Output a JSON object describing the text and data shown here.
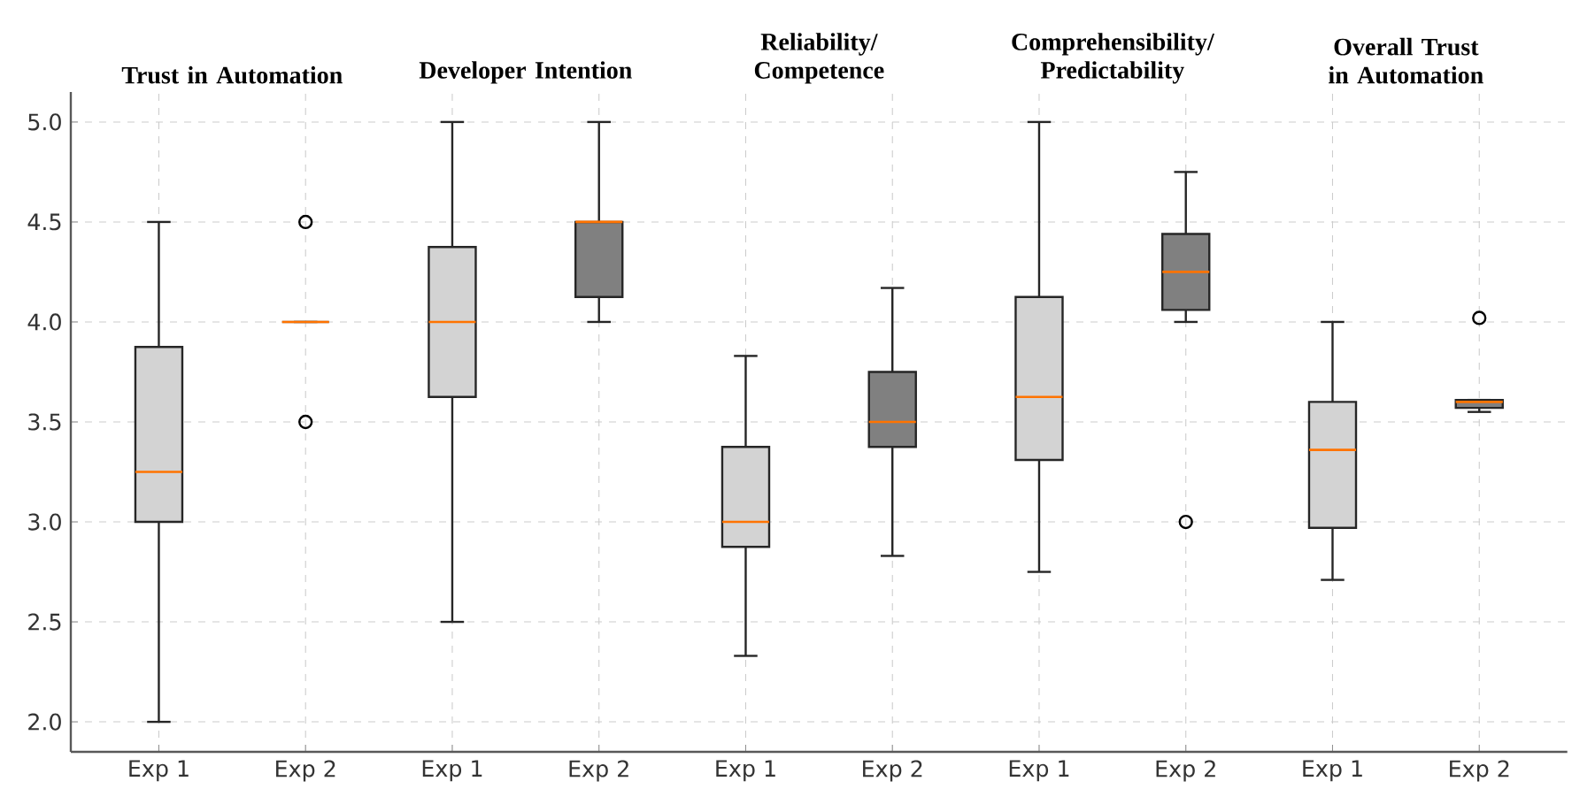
{
  "chart_data": {
    "type": "box",
    "categories": [
      "Exp 1",
      "Exp 2",
      "Exp 1",
      "Exp 2",
      "Exp 1",
      "Exp 2",
      "Exp 1",
      "Exp 2",
      "Exp 1",
      "Exp 2"
    ],
    "boxes": [
      {
        "low": 2.0,
        "q1": 3.0,
        "median": 3.25,
        "q3": 3.875,
        "high": 4.5
      },
      {
        "low": 4.0,
        "q1": 4.0,
        "median": 4.0,
        "q3": 4.0,
        "high": 4.0,
        "outliers": [
          4.5,
          3.5
        ]
      },
      {
        "low": 2.5,
        "q1": 3.625,
        "median": 4.0,
        "q3": 4.375,
        "high": 5.0
      },
      {
        "low": 4.0,
        "q1": 4.125,
        "median": 4.5,
        "q3": 4.5,
        "high": 5.0
      },
      {
        "low": 2.33,
        "q1": 2.875,
        "median": 3.0,
        "q3": 3.375,
        "high": 3.83
      },
      {
        "low": 2.83,
        "q1": 3.375,
        "median": 3.5,
        "q3": 3.75,
        "high": 4.17
      },
      {
        "low": 2.75,
        "q1": 3.31,
        "median": 3.625,
        "q3": 4.125,
        "high": 5.0
      },
      {
        "low": 4.0,
        "q1": 4.06,
        "median": 4.25,
        "q3": 4.44,
        "high": 4.75,
        "outliers": [
          3.0
        ]
      },
      {
        "low": 2.71,
        "q1": 2.97,
        "median": 3.36,
        "q3": 3.6,
        "high": 4.0
      },
      {
        "low": 3.55,
        "q1": 3.57,
        "median": 3.6,
        "q3": 3.61,
        "high": 3.61,
        "outliers": [
          4.02
        ]
      }
    ],
    "colors": [
      "#d3d3d3",
      "#808080",
      "#d3d3d3",
      "#808080",
      "#d3d3d3",
      "#808080",
      "#d3d3d3",
      "#808080",
      "#d3d3d3",
      "#808080"
    ],
    "annotations": [
      "Trust in Automation",
      "Developer Intention",
      "Reliability/ Competence",
      "Comprehensibility/ Predictability",
      "Overall Trust in Automation"
    ],
    "ylim": [
      1.85,
      5.15
    ],
    "yticks": [
      {
        "value": 2,
        "label": "2.0"
      },
      {
        "value": 2.5,
        "label": "2.5"
      },
      {
        "value": 3,
        "label": "3.0"
      },
      {
        "value": 3.5,
        "label": "3.5"
      },
      {
        "value": 4,
        "label": "4.0"
      },
      {
        "value": 4.5,
        "label": "4.5"
      },
      {
        "value": 5,
        "label": "5.0"
      }
    ],
    "grid": true
  }
}
